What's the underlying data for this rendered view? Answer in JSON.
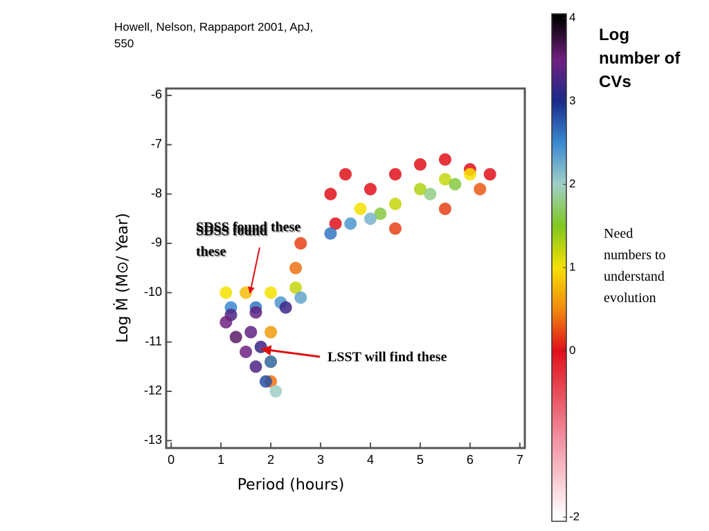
{
  "chart_data": {
    "type": "scatter",
    "citation_line1": "Howell, Nelson, Rappaport 2001, ApJ,",
    "citation_line2": "550",
    "xlabel": "Period (hours)",
    "ylabel": "Log Ṁ (M⊙/ Year)",
    "xlim": [
      -0.1,
      7.1
    ],
    "ylim": [
      -13.15,
      -5.86
    ],
    "xticks": [
      0,
      1,
      2,
      3,
      4,
      5,
      6,
      7
    ],
    "yticks": [
      -6,
      -7,
      -8,
      -9,
      -10,
      -11,
      -12,
      -13
    ],
    "x": [
      3.2,
      3.5,
      4,
      4.5,
      5,
      5.5,
      6,
      6.4,
      3.3,
      4.5,
      5.5,
      6.2,
      3.8,
      4.5,
      5,
      5.5,
      6,
      4.2,
      5.2,
      5.7,
      3.2,
      3.6,
      4,
      1.1,
      1.5,
      2,
      2.5,
      2.5,
      2.6,
      2,
      2,
      2,
      1.2,
      1.7,
      2.2,
      2.6,
      1.2,
      1.7,
      2.3,
      1.1,
      1.3,
      1.5,
      1.7,
      1.9,
      2.1,
      1.6,
      1.8,
      2
    ],
    "y": [
      -8,
      -7.6,
      -7.9,
      -7.6,
      -7.4,
      -7.3,
      -7.5,
      -7.6,
      -8.6,
      -8.7,
      -8.3,
      -7.9,
      -8.3,
      -8.2,
      -7.9,
      -7.7,
      -7.6,
      -8.4,
      -8,
      -7.8,
      -8.8,
      -8.6,
      -8.5,
      -10,
      -10,
      -10,
      -9.9,
      -9.5,
      -9,
      -10.8,
      -11.4,
      -11.8,
      -10.3,
      -10.3,
      -10.2,
      -10.1,
      -10.45,
      -10.4,
      -10.3,
      -10.6,
      -10.9,
      -11.2,
      -11.5,
      -11.8,
      -12,
      -10.8,
      -11.1,
      -11.4
    ],
    "values": [
      0,
      0,
      0,
      0,
      0,
      0,
      0,
      0,
      0,
      0.2,
      0.2,
      0.3,
      1,
      1.2,
      1.3,
      1.2,
      1,
      1.6,
      1.8,
      1.6,
      2.6,
      2.4,
      2.2,
      1,
      0.8,
      1,
      1.2,
      0.4,
      0.2,
      0.6,
      0.5,
      0.4,
      2.5,
      2.6,
      2.4,
      2.3,
      3.3,
      3.4,
      3.2,
      3.5,
      3.6,
      3.5,
      3.3,
      2.8,
      2,
      3.4,
      3.2,
      2.6
    ],
    "colorbar": {
      "title": "Log number of CVs",
      "lim": [
        -2.05,
        4.05
      ],
      "ticks": [
        4,
        3,
        2,
        1,
        0,
        -2
      ],
      "colorscale": [
        {
          "value": -2,
          "color": "#ffffff"
        },
        {
          "value": -1,
          "color": "#f08a9a"
        },
        {
          "value": 0,
          "color": "#e0101a"
        },
        {
          "value": 0.5,
          "color": "#f08a10"
        },
        {
          "value": 1,
          "color": "#f5e000"
        },
        {
          "value": 1.5,
          "color": "#80c820"
        },
        {
          "value": 2,
          "color": "#a0cfc8"
        },
        {
          "value": 2.5,
          "color": "#3a8ad0"
        },
        {
          "value": 3,
          "color": "#1a2a8a"
        },
        {
          "value": 3.5,
          "color": "#702080"
        },
        {
          "value": 4,
          "color": "#000000"
        }
      ]
    },
    "annotations": [
      "SDSS found these",
      "LSST will find these"
    ],
    "side_note": "Need numbers to understand evolution"
  }
}
